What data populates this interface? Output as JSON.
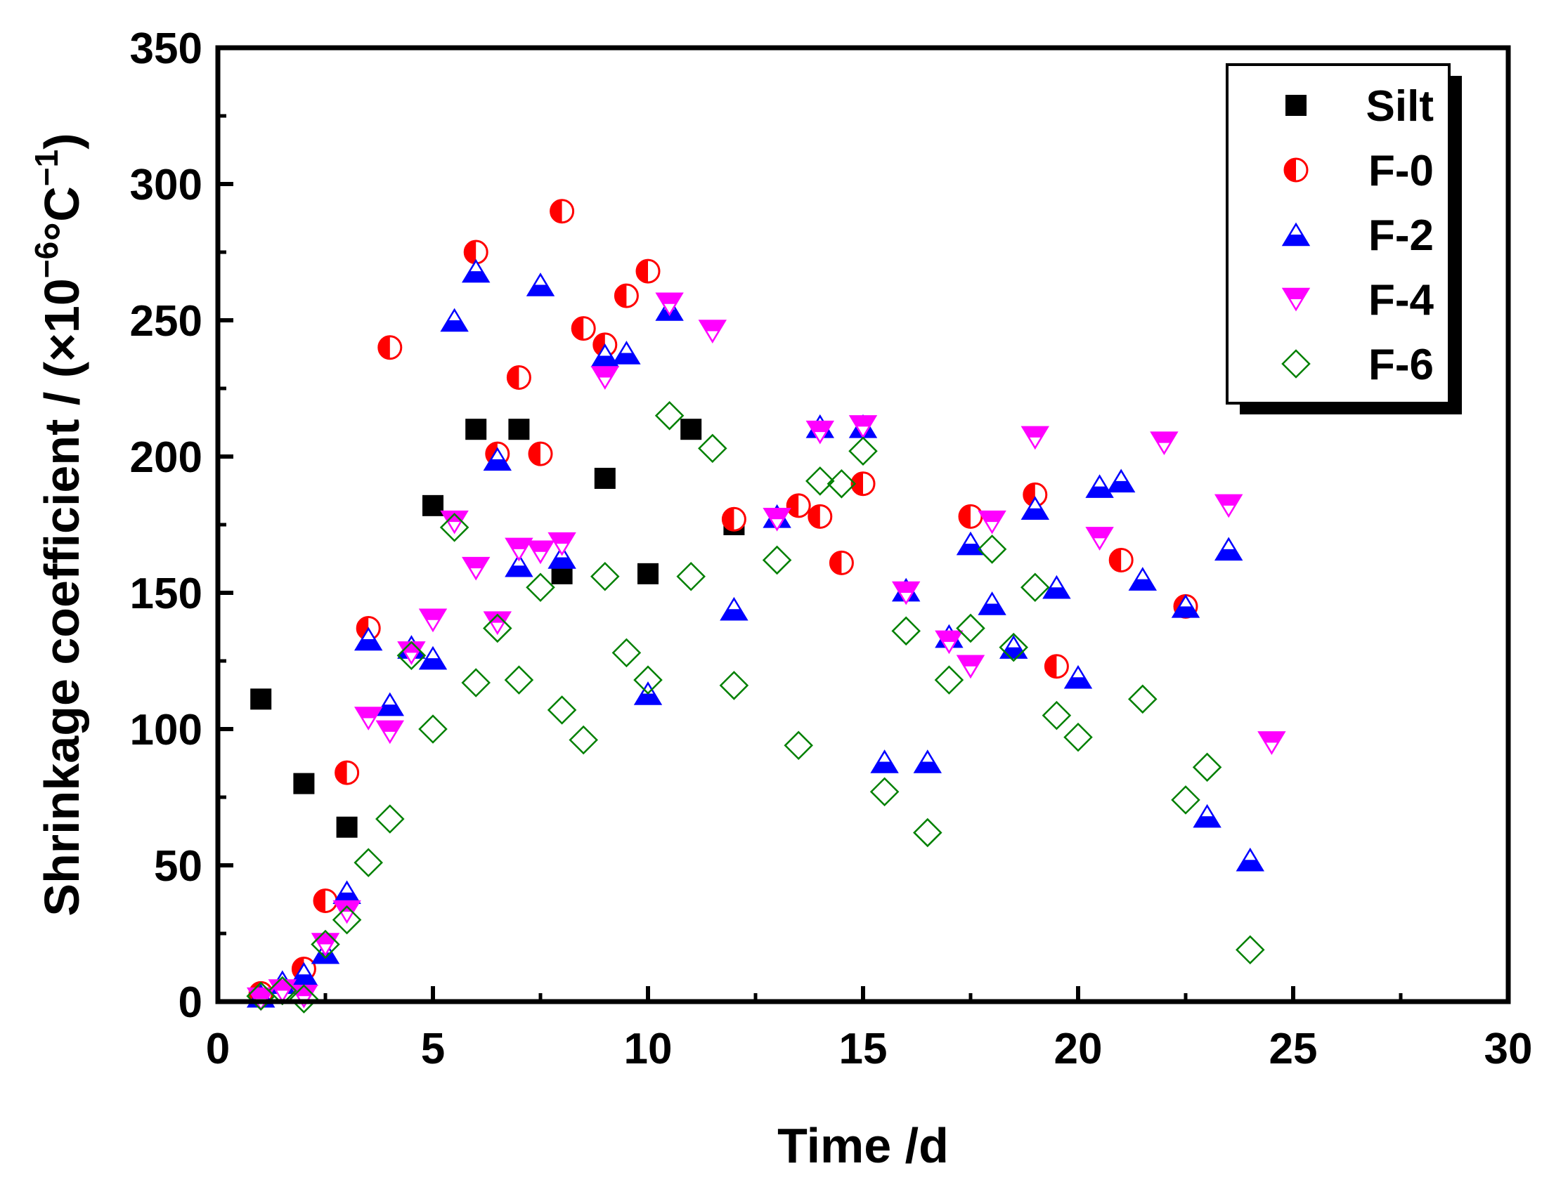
{
  "chart_data": {
    "type": "scatter",
    "xlabel": "Time /d",
    "ylabel": "Shrinkage coefficient / (×10",
    "ylabel_exp1": "−6",
    "ylabel_unit": "°C",
    "ylabel_exp2": "−1",
    "ylabel_close": ")",
    "xlim": [
      0,
      30
    ],
    "ylim": [
      0,
      350
    ],
    "xticks": [
      0,
      5,
      10,
      15,
      20,
      25,
      30
    ],
    "yticks": [
      0,
      50,
      100,
      150,
      200,
      250,
      300,
      350
    ],
    "legend_position": "top-right",
    "series": [
      {
        "name": "Silt",
        "marker": "square",
        "color": "#000000",
        "points": [
          [
            1,
            111
          ],
          [
            2,
            80
          ],
          [
            3,
            64
          ],
          [
            5,
            182
          ],
          [
            6,
            210
          ],
          [
            7,
            210
          ],
          [
            8,
            157
          ],
          [
            9,
            192
          ],
          [
            10,
            157
          ],
          [
            11,
            210
          ],
          [
            12,
            175
          ]
        ]
      },
      {
        "name": "F-0",
        "marker": "half-circle",
        "color": "#ff0000",
        "points": [
          [
            1,
            3
          ],
          [
            2,
            12
          ],
          [
            2.5,
            37
          ],
          [
            3,
            84
          ],
          [
            3.5,
            137
          ],
          [
            4,
            240
          ],
          [
            6,
            275
          ],
          [
            6.5,
            201
          ],
          [
            7,
            229
          ],
          [
            7.5,
            201
          ],
          [
            8,
            290
          ],
          [
            8.5,
            247
          ],
          [
            9,
            241
          ],
          [
            9.5,
            259
          ],
          [
            10,
            268
          ],
          [
            12,
            177
          ],
          [
            13.5,
            182
          ],
          [
            14,
            178
          ],
          [
            14.5,
            161
          ],
          [
            15,
            190
          ],
          [
            17.5,
            178
          ],
          [
            19,
            186
          ],
          [
            19.5,
            123
          ],
          [
            21,
            162
          ],
          [
            22.5,
            145
          ]
        ]
      },
      {
        "name": "F-2",
        "marker": "half-triangle-up",
        "color": "#0000ff",
        "points": [
          [
            1,
            2
          ],
          [
            1.5,
            7
          ],
          [
            2,
            10
          ],
          [
            2.5,
            18
          ],
          [
            3,
            40
          ],
          [
            3.5,
            133
          ],
          [
            4,
            109
          ],
          [
            4.5,
            130
          ],
          [
            5,
            126
          ],
          [
            5.5,
            250
          ],
          [
            6,
            268
          ],
          [
            6.5,
            199
          ],
          [
            7,
            160
          ],
          [
            7.5,
            263
          ],
          [
            8,
            163
          ],
          [
            9,
            237
          ],
          [
            9.5,
            238
          ],
          [
            10,
            113
          ],
          [
            10.5,
            254
          ],
          [
            12,
            144
          ],
          [
            13,
            178
          ],
          [
            14,
            211
          ],
          [
            15,
            211
          ],
          [
            15.5,
            88
          ],
          [
            16,
            151
          ],
          [
            16.5,
            88
          ],
          [
            17,
            134
          ],
          [
            17.5,
            168
          ],
          [
            18,
            146
          ],
          [
            18.5,
            130
          ],
          [
            19,
            181
          ],
          [
            19.5,
            152
          ],
          [
            20,
            119
          ],
          [
            20.5,
            189
          ],
          [
            21,
            191
          ],
          [
            21.5,
            155
          ],
          [
            22.5,
            145
          ],
          [
            23,
            68
          ],
          [
            23.5,
            166
          ],
          [
            24,
            52
          ]
        ]
      },
      {
        "name": "F-4",
        "marker": "half-triangle-down",
        "color": "#ff00ff",
        "points": [
          [
            1,
            1
          ],
          [
            1.5,
            4
          ],
          [
            2,
            2
          ],
          [
            2.5,
            21
          ],
          [
            3,
            33
          ],
          [
            3.5,
            104
          ],
          [
            4,
            99
          ],
          [
            4.5,
            128
          ],
          [
            5,
            140
          ],
          [
            5.5,
            176
          ],
          [
            6,
            159
          ],
          [
            6.5,
            139
          ],
          [
            7,
            166
          ],
          [
            7.5,
            165
          ],
          [
            8,
            168
          ],
          [
            9,
            229
          ],
          [
            10.5,
            256
          ],
          [
            11.5,
            246
          ],
          [
            13,
            177
          ],
          [
            14,
            209
          ],
          [
            15,
            211
          ],
          [
            16,
            150
          ],
          [
            17,
            132
          ],
          [
            17.5,
            123
          ],
          [
            18,
            176
          ],
          [
            19,
            207
          ],
          [
            20.5,
            170
          ],
          [
            22,
            205
          ],
          [
            23.5,
            182
          ],
          [
            24.5,
            95
          ]
        ]
      },
      {
        "name": "F-6",
        "marker": "diamond",
        "color": "#008000",
        "points": [
          [
            1,
            2
          ],
          [
            1.5,
            4
          ],
          [
            2,
            1
          ],
          [
            2.5,
            21
          ],
          [
            3,
            30
          ],
          [
            3.5,
            51
          ],
          [
            4,
            67
          ],
          [
            4.5,
            127
          ],
          [
            5,
            100
          ],
          [
            5.5,
            174
          ],
          [
            6,
            117
          ],
          [
            6.5,
            137
          ],
          [
            7,
            118
          ],
          [
            7.5,
            152
          ],
          [
            8,
            107
          ],
          [
            8.5,
            96
          ],
          [
            9,
            156
          ],
          [
            9.5,
            128
          ],
          [
            10,
            118
          ],
          [
            10.5,
            215
          ],
          [
            11,
            156
          ],
          [
            11.5,
            203
          ],
          [
            12,
            116
          ],
          [
            13,
            162
          ],
          [
            13.5,
            94
          ],
          [
            14,
            191
          ],
          [
            14.5,
            190
          ],
          [
            15,
            202
          ],
          [
            15.5,
            77
          ],
          [
            16,
            136
          ],
          [
            16.5,
            62
          ],
          [
            17,
            118
          ],
          [
            17.5,
            137
          ],
          [
            18,
            166
          ],
          [
            18.5,
            130
          ],
          [
            19,
            152
          ],
          [
            19.5,
            105
          ],
          [
            20,
            97
          ],
          [
            21.5,
            111
          ],
          [
            22.5,
            74
          ],
          [
            23,
            86
          ],
          [
            24,
            19
          ]
        ]
      }
    ]
  }
}
